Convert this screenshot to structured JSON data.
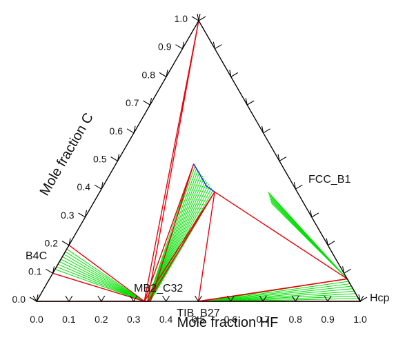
{
  "chart_data": {
    "type": "ternary",
    "xlabel": "Mole fraction HF",
    "ylabel": "Mole fraction C",
    "bottom_ticks": [
      "0.0",
      "0.1",
      "0.2",
      "0.3",
      "0.4",
      "0.5",
      "0.6",
      "0.7",
      "0.8",
      "0.9",
      "1.0"
    ],
    "left_ticks": [
      "0.0",
      "0.1",
      "0.2",
      "0.3",
      "0.4",
      "0.5",
      "0.6",
      "0.7",
      "0.8",
      "0.9",
      "1.0"
    ],
    "phases": [
      {
        "label": "B4C",
        "hf": 0.0,
        "c": 0.2
      },
      {
        "label": "MB2_C32",
        "hf": 0.333,
        "c": 0.0
      },
      {
        "label": "TIB_B27",
        "hf": 0.5,
        "c": 0.0
      },
      {
        "label": "FCC_B1",
        "hf": 0.5,
        "c": 0.5
      },
      {
        "label": "Hcp",
        "hf": 1.0,
        "c": 0.0
      }
    ],
    "colors": {
      "frame": "#000000",
      "tie_triangle": "#e8000b",
      "tie_line": "#00e000",
      "phase_boundary": "#2020ff"
    },
    "tie_triangles": [
      [
        [
          0.0,
          1.0
        ],
        [
          0.333,
          0.0
        ],
        [
          0.343,
          0.0
        ]
      ],
      [
        [
          0.0,
          0.2
        ],
        [
          0.0,
          0.1
        ],
        [
          0.333,
          0.0
        ]
      ],
      [
        [
          0.0,
          0.0
        ],
        [
          0.0,
          0.0
        ],
        [
          0.333,
          0.0
        ]
      ],
      [
        [
          0.333,
          0.0
        ],
        [
          0.24,
          0.49
        ],
        [
          0.352,
          0.0
        ]
      ],
      [
        [
          0.333,
          0.0
        ],
        [
          0.345,
          0.0
        ],
        [
          0.355,
          0.39
        ]
      ],
      [
        [
          0.355,
          0.39
        ],
        [
          0.5,
          0.0
        ],
        [
          0.92,
          0.08
        ]
      ],
      [
        [
          0.5,
          0.0
        ],
        [
          0.92,
          0.08
        ],
        [
          1.0,
          0.0
        ]
      ]
    ],
    "tie_fans": [
      {
        "from": [
          [
            0.0,
            0.186
          ],
          [
            0.0,
            0.114
          ]
        ],
        "to": [
          [
            0.333,
            0.0
          ],
          [
            0.333,
            0.0
          ]
        ],
        "count": 9
      },
      {
        "from": [
          [
            0.343,
            0.0
          ],
          [
            0.351,
            0.0
          ]
        ],
        "to": [
          [
            0.24,
            0.49
          ],
          [
            0.355,
            0.39
          ]
        ],
        "count": 15
      },
      {
        "from": [
          [
            0.52,
            0.39
          ],
          [
            0.55,
            0.35
          ]
        ],
        "to": [
          [
            0.92,
            0.08
          ],
          [
            0.92,
            0.08
          ]
        ],
        "count": 7
      },
      {
        "from": [
          [
            0.52,
            0.0
          ],
          [
            0.58,
            0.0
          ]
        ],
        "to": [
          [
            0.92,
            0.08
          ],
          [
            0.99,
            0.01
          ]
        ],
        "count": 9
      }
    ],
    "phase_boundary": [
      [
        0.24,
        0.49
      ],
      [
        0.26,
        0.47
      ],
      [
        0.29,
        0.44
      ],
      [
        0.32,
        0.41
      ],
      [
        0.355,
        0.39
      ]
    ]
  }
}
